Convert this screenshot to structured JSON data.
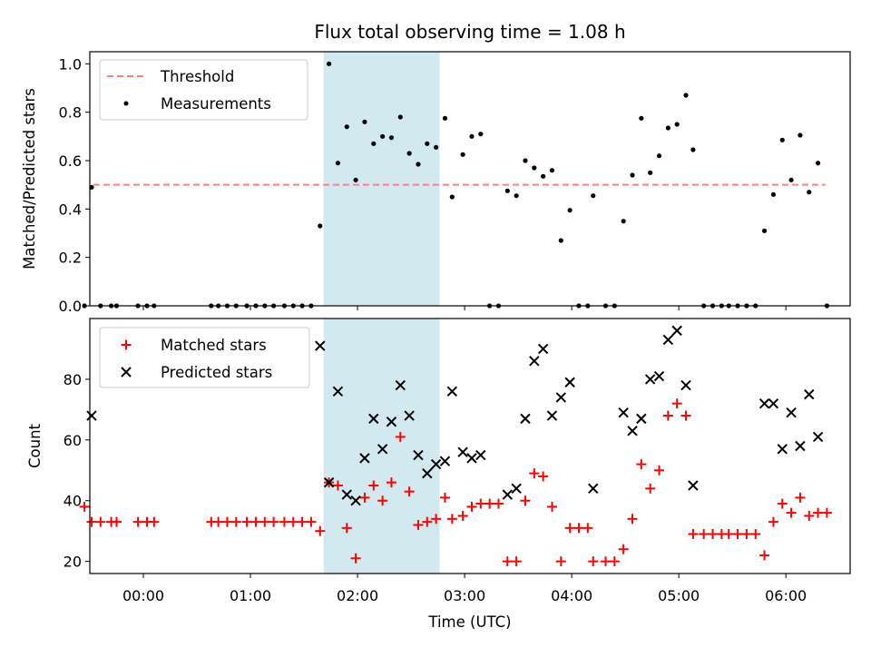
{
  "chart_data": [
    {
      "type": "scatter",
      "title": "Flux total observing time = 1.08 h",
      "xlabel": "",
      "ylabel": "Matched/Predicted stars",
      "xlim": [
        "-00:30",
        "06:36"
      ],
      "ylim": [
        0,
        1.05
      ],
      "yticks": [
        "0.0",
        "0.2",
        "0.4",
        "0.6",
        "0.8",
        "1.0"
      ],
      "highlight_span": {
        "x_start": "01:41",
        "x_end": "02:46",
        "color": "#d3e9f0"
      },
      "legend": {
        "position": "top-left",
        "entries": [
          "Threshold",
          "Measurements"
        ]
      },
      "threshold": {
        "name": "Threshold",
        "value": 0.5,
        "x_start": "-00:28",
        "x_end": "06:22",
        "color": "#ff7f7f"
      },
      "measurements": {
        "name": "Measurements",
        "color": "#000000",
        "points": [
          [
            "-00:33",
            0.0
          ],
          [
            "-00:29",
            0.49
          ],
          [
            "-00:24",
            0.0
          ],
          [
            "-00:18",
            0.0
          ],
          [
            "-00:15",
            0.0
          ],
          [
            "-00:03",
            0.0
          ],
          [
            "00:02",
            0.0
          ],
          [
            "00:06",
            0.0
          ],
          [
            "00:38",
            0.0
          ],
          [
            "00:42",
            0.0
          ],
          [
            "00:47",
            0.0
          ],
          [
            "00:52",
            0.0
          ],
          [
            "00:58",
            0.0
          ],
          [
            "01:03",
            0.0
          ],
          [
            "01:08",
            0.0
          ],
          [
            "01:13",
            0.0
          ],
          [
            "01:19",
            0.0
          ],
          [
            "01:24",
            0.0
          ],
          [
            "01:29",
            0.0
          ],
          [
            "01:34",
            0.0
          ],
          [
            "01:39",
            0.33
          ],
          [
            "01:44",
            1.0
          ],
          [
            "01:49",
            0.59
          ],
          [
            "01:54",
            0.74
          ],
          [
            "01:59",
            0.52
          ],
          [
            "02:04",
            0.76
          ],
          [
            "02:09",
            0.67
          ],
          [
            "02:14",
            0.7
          ],
          [
            "02:19",
            0.695
          ],
          [
            "02:24",
            0.78
          ],
          [
            "02:29",
            0.63
          ],
          [
            "02:34",
            0.585
          ],
          [
            "02:39",
            0.67
          ],
          [
            "02:44",
            0.655
          ],
          [
            "02:49",
            0.775
          ],
          [
            "02:53",
            0.45
          ],
          [
            "02:59",
            0.625
          ],
          [
            "03:04",
            0.7
          ],
          [
            "03:09",
            0.71
          ],
          [
            "03:14",
            0.0
          ],
          [
            "03:19",
            0.0
          ],
          [
            "03:24",
            0.475
          ],
          [
            "03:29",
            0.455
          ],
          [
            "03:34",
            0.6
          ],
          [
            "03:39",
            0.57
          ],
          [
            "03:44",
            0.535
          ],
          [
            "03:49",
            0.56
          ],
          [
            "03:54",
            0.27
          ],
          [
            "03:59",
            0.395
          ],
          [
            "04:04",
            0.0
          ],
          [
            "04:09",
            0.0
          ],
          [
            "04:12",
            0.455
          ],
          [
            "04:19",
            0.0
          ],
          [
            "04:24",
            0.0
          ],
          [
            "04:29",
            0.35
          ],
          [
            "04:34",
            0.54
          ],
          [
            "04:39",
            0.775
          ],
          [
            "04:44",
            0.55
          ],
          [
            "04:49",
            0.62
          ],
          [
            "04:54",
            0.735
          ],
          [
            "04:59",
            0.75
          ],
          [
            "05:04",
            0.87
          ],
          [
            "05:08",
            0.645
          ],
          [
            "05:14",
            0.0
          ],
          [
            "05:19",
            0.0
          ],
          [
            "05:24",
            0.0
          ],
          [
            "05:28",
            0.0
          ],
          [
            "05:33",
            0.0
          ],
          [
            "05:38",
            0.0
          ],
          [
            "05:43",
            0.0
          ],
          [
            "05:48",
            0.31
          ],
          [
            "05:53",
            0.46
          ],
          [
            "05:58",
            0.685
          ],
          [
            "06:03",
            0.52
          ],
          [
            "06:08",
            0.705
          ],
          [
            "06:13",
            0.47
          ],
          [
            "06:18",
            0.59
          ],
          [
            "06:23",
            0.0
          ]
        ]
      }
    },
    {
      "type": "scatter",
      "title": "",
      "xlabel": "Time (UTC)",
      "ylabel": "Count",
      "xlim": [
        "-00:30",
        "06:36"
      ],
      "ylim": [
        16,
        100
      ],
      "yticks": [
        "20",
        "40",
        "60",
        "80"
      ],
      "xticks": [
        "00:00",
        "01:00",
        "02:00",
        "03:00",
        "04:00",
        "05:00",
        "06:00"
      ],
      "highlight_span": {
        "x_start": "01:41",
        "x_end": "02:46",
        "color": "#d3e9f0"
      },
      "legend": {
        "position": "top-left",
        "entries": [
          "Matched stars",
          "Predicted stars"
        ]
      },
      "series": [
        {
          "name": "Matched stars",
          "marker": "plus",
          "color": "#ff0000",
          "points": [
            [
              "-00:33",
              38
            ],
            [
              "-00:29",
              33
            ],
            [
              "-00:24",
              33
            ],
            [
              "-00:18",
              33
            ],
            [
              "-00:15",
              33
            ],
            [
              "-00:03",
              33
            ],
            [
              "00:02",
              33
            ],
            [
              "00:06",
              33
            ],
            [
              "00:38",
              33
            ],
            [
              "00:42",
              33
            ],
            [
              "00:47",
              33
            ],
            [
              "00:52",
              33
            ],
            [
              "00:58",
              33
            ],
            [
              "01:03",
              33
            ],
            [
              "01:08",
              33
            ],
            [
              "01:13",
              33
            ],
            [
              "01:19",
              33
            ],
            [
              "01:24",
              33
            ],
            [
              "01:29",
              33
            ],
            [
              "01:34",
              33
            ],
            [
              "01:39",
              30
            ],
            [
              "01:44",
              46
            ],
            [
              "01:49",
              45
            ],
            [
              "01:54",
              31
            ],
            [
              "01:59",
              21
            ],
            [
              "02:04",
              41
            ],
            [
              "02:09",
              45
            ],
            [
              "02:14",
              40
            ],
            [
              "02:19",
              46
            ],
            [
              "02:24",
              61
            ],
            [
              "02:29",
              43
            ],
            [
              "02:34",
              32
            ],
            [
              "02:39",
              33
            ],
            [
              "02:44",
              34
            ],
            [
              "02:49",
              41
            ],
            [
              "02:53",
              34
            ],
            [
              "02:59",
              35
            ],
            [
              "03:04",
              38
            ],
            [
              "03:09",
              39
            ],
            [
              "03:14",
              39
            ],
            [
              "03:19",
              39
            ],
            [
              "03:24",
              20
            ],
            [
              "03:29",
              20
            ],
            [
              "03:34",
              40
            ],
            [
              "03:39",
              49
            ],
            [
              "03:44",
              48
            ],
            [
              "03:49",
              38
            ],
            [
              "03:54",
              20
            ],
            [
              "03:59",
              31
            ],
            [
              "04:04",
              31
            ],
            [
              "04:09",
              31
            ],
            [
              "04:12",
              20
            ],
            [
              "04:19",
              20
            ],
            [
              "04:24",
              20
            ],
            [
              "04:29",
              24
            ],
            [
              "04:34",
              34
            ],
            [
              "04:39",
              52
            ],
            [
              "04:44",
              44
            ],
            [
              "04:49",
              50
            ],
            [
              "04:54",
              68
            ],
            [
              "04:59",
              72
            ],
            [
              "05:04",
              68
            ],
            [
              "05:08",
              29
            ],
            [
              "05:14",
              29
            ],
            [
              "05:19",
              29
            ],
            [
              "05:24",
              29
            ],
            [
              "05:28",
              29
            ],
            [
              "05:33",
              29
            ],
            [
              "05:38",
              29
            ],
            [
              "05:43",
              29
            ],
            [
              "05:48",
              22
            ],
            [
              "05:53",
              33
            ],
            [
              "05:58",
              39
            ],
            [
              "06:03",
              36
            ],
            [
              "06:08",
              41
            ],
            [
              "06:13",
              35
            ],
            [
              "06:18",
              36
            ],
            [
              "06:23",
              36
            ]
          ]
        },
        {
          "name": "Predicted stars",
          "marker": "cross",
          "color": "#000000",
          "points": [
            [
              "-00:29",
              68
            ],
            [
              "01:39",
              91
            ],
            [
              "01:44",
              46
            ],
            [
              "01:49",
              76
            ],
            [
              "01:54",
              42
            ],
            [
              "01:59",
              40
            ],
            [
              "02:04",
              54
            ],
            [
              "02:09",
              67
            ],
            [
              "02:14",
              57
            ],
            [
              "02:19",
              66
            ],
            [
              "02:24",
              78
            ],
            [
              "02:29",
              68
            ],
            [
              "02:34",
              55
            ],
            [
              "02:39",
              49
            ],
            [
              "02:44",
              52
            ],
            [
              "02:49",
              53
            ],
            [
              "02:53",
              76
            ],
            [
              "02:59",
              56
            ],
            [
              "03:04",
              54
            ],
            [
              "03:09",
              55
            ],
            [
              "03:24",
              42
            ],
            [
              "03:29",
              44
            ],
            [
              "03:34",
              67
            ],
            [
              "03:39",
              86
            ],
            [
              "03:44",
              90
            ],
            [
              "03:49",
              68
            ],
            [
              "03:54",
              74
            ],
            [
              "03:59",
              79
            ],
            [
              "04:12",
              44
            ],
            [
              "04:29",
              69
            ],
            [
              "04:34",
              63
            ],
            [
              "04:39",
              67
            ],
            [
              "04:44",
              80
            ],
            [
              "04:49",
              81
            ],
            [
              "04:54",
              93
            ],
            [
              "04:59",
              96
            ],
            [
              "05:04",
              78
            ],
            [
              "05:08",
              45
            ],
            [
              "05:48",
              72
            ],
            [
              "05:53",
              72
            ],
            [
              "05:58",
              57
            ],
            [
              "06:03",
              69
            ],
            [
              "06:08",
              58
            ],
            [
              "06:13",
              75
            ],
            [
              "06:18",
              61
            ]
          ]
        }
      ]
    }
  ]
}
